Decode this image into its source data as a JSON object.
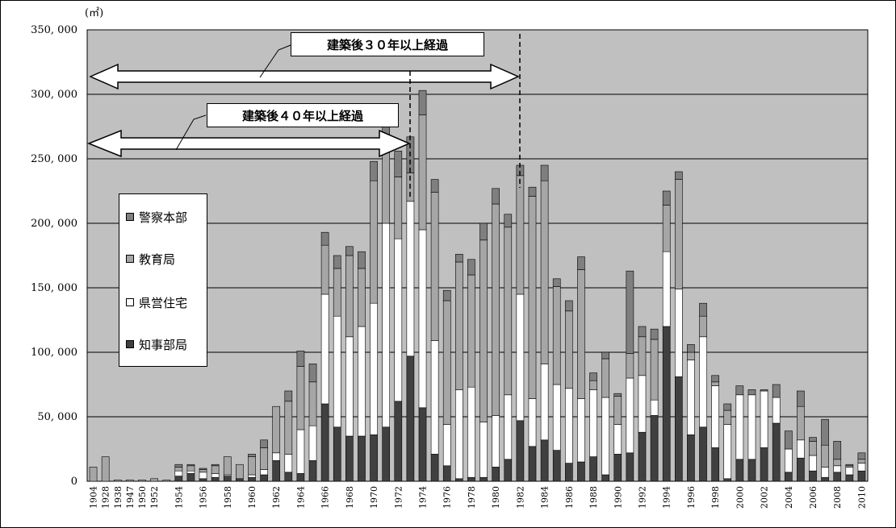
{
  "colors": {
    "plot_bg": "#c0c0c0",
    "keisatsu": "#7f7f7f",
    "kyoiku": "#a6a6a6",
    "kenei": "#ffffff",
    "chiji": "#404040"
  },
  "chart_data": {
    "type": "bar",
    "stacked": true,
    "unit_label": "(㎡)",
    "title": "",
    "xlabel": "",
    "ylabel": "",
    "ylim": [
      0,
      350000
    ],
    "y_ticks": [
      "0",
      "50, 000",
      "100, 000",
      "150, 000",
      "200, 000",
      "250, 000",
      "300, 000",
      "350, 000"
    ],
    "y_tick_values": [
      0,
      50000,
      100000,
      150000,
      200000,
      250000,
      300000,
      350000
    ],
    "grid": true,
    "legend_position": "left",
    "legend": [
      "警察本部",
      "教育局",
      "県営住宅",
      "知事部局"
    ],
    "categories": [
      "1904",
      "1928",
      "1938",
      "1947",
      "1950",
      "1952",
      "1953",
      "1954",
      "1955",
      "1956",
      "1957",
      "1958",
      "1959",
      "1960",
      "1961",
      "1962",
      "1963",
      "1964",
      "1965",
      "1966",
      "1967",
      "1968",
      "1969",
      "1970",
      "1971",
      "1972",
      "1973",
      "1974",
      "1975",
      "1976",
      "1977",
      "1978",
      "1979",
      "1980",
      "1981",
      "1982",
      "1983",
      "1984",
      "1985",
      "1986",
      "1987",
      "1988",
      "1989",
      "1990",
      "1991",
      "1992",
      "1993",
      "1994",
      "1995",
      "1996",
      "1997",
      "1998",
      "1999",
      "2000",
      "2001",
      "2002",
      "2003",
      "2004",
      "2005",
      "2006",
      "2007",
      "2008",
      "2009",
      "2010"
    ],
    "x_tick_labels": [
      "1904",
      "1928",
      "1938",
      "1947",
      "1950",
      "1952",
      "1954",
      "1956",
      "1958",
      "1960",
      "1962",
      "1964",
      "1966",
      "1968",
      "1970",
      "1972",
      "1974",
      "1976",
      "1978",
      "1980",
      "1982",
      "1984",
      "1986",
      "1988",
      "1990",
      "1992",
      "1994",
      "1996",
      "1998",
      "2000",
      "2002",
      "2004",
      "2006",
      "2008",
      "2010"
    ],
    "series": [
      {
        "name": "知事部局",
        "values": [
          0,
          0,
          0,
          0,
          0,
          0,
          0,
          4000,
          6000,
          2000,
          3000,
          4000,
          2000,
          3000,
          5000,
          16000,
          7000,
          6000,
          16000,
          60000,
          42000,
          35000,
          35000,
          36000,
          42000,
          62000,
          97000,
          57000,
          21000,
          12000,
          2000,
          3000,
          3000,
          11000,
          17000,
          47000,
          27000,
          32000,
          24000,
          14000,
          15000,
          19000,
          5000,
          21000,
          22000,
          38000,
          51000,
          120000,
          81000,
          36000,
          42000,
          26000,
          2000,
          17000,
          17000,
          26000,
          45000,
          7000,
          18000,
          8000,
          3000,
          7000,
          5000,
          8000
        ]
      },
      {
        "name": "県営住宅",
        "values": [
          0,
          0,
          0,
          0,
          0,
          0,
          0,
          4000,
          2000,
          5000,
          3000,
          1000,
          0,
          2000,
          4000,
          6000,
          14000,
          34000,
          27000,
          85000,
          86000,
          77000,
          85000,
          102000,
          158000,
          126000,
          120000,
          138000,
          88000,
          32000,
          69000,
          70000,
          43000,
          40000,
          50000,
          98000,
          37000,
          59000,
          51000,
          58000,
          49000,
          52000,
          60000,
          23000,
          58000,
          44000,
          12000,
          58000,
          68000,
          58000,
          70000,
          48000,
          42000,
          50000,
          50000,
          44000,
          20000,
          18000,
          14000,
          12000,
          8000,
          5000,
          6000,
          6000
        ]
      },
      {
        "name": "教育局",
        "values": [
          11000,
          19000,
          1000,
          1000,
          1000,
          2000,
          1000,
          3000,
          4000,
          2000,
          6000,
          14000,
          11000,
          14000,
          17000,
          36000,
          41000,
          49000,
          34000,
          38000,
          37000,
          63000,
          45000,
          95000,
          64000,
          48000,
          22000,
          89000,
          115000,
          96000,
          99000,
          87000,
          141000,
          164000,
          130000,
          92000,
          157000,
          142000,
          76000,
          60000,
          100000,
          7000,
          30000,
          22000,
          19000,
          30000,
          47000,
          36000,
          85000,
          6000,
          16000,
          3000,
          11000,
          0,
          0,
          0,
          0,
          0,
          26000,
          11000,
          17000,
          5000,
          1000,
          3000
        ]
      },
      {
        "name": "警察本部",
        "values": [
          0,
          0,
          0,
          0,
          0,
          0,
          0,
          2000,
          1000,
          1000,
          1000,
          0,
          0,
          2000,
          6000,
          0,
          8000,
          12000,
          14000,
          10000,
          10000,
          7000,
          13000,
          15000,
          24000,
          20000,
          28000,
          19000,
          10000,
          8000,
          6000,
          12000,
          13000,
          12000,
          10000,
          8000,
          7000,
          12000,
          6000,
          8000,
          10000,
          6000,
          5000,
          2000,
          64000,
          8000,
          8000,
          11000,
          6000,
          6000,
          10000,
          5000,
          5000,
          7000,
          4000,
          1000,
          10000,
          14000,
          12000,
          3000,
          20000,
          14000,
          1000,
          5000
        ]
      }
    ]
  },
  "annotations": {
    "callout_30": "建築後３０年以上経過",
    "callout_40": "建築後４０年以上経過"
  }
}
